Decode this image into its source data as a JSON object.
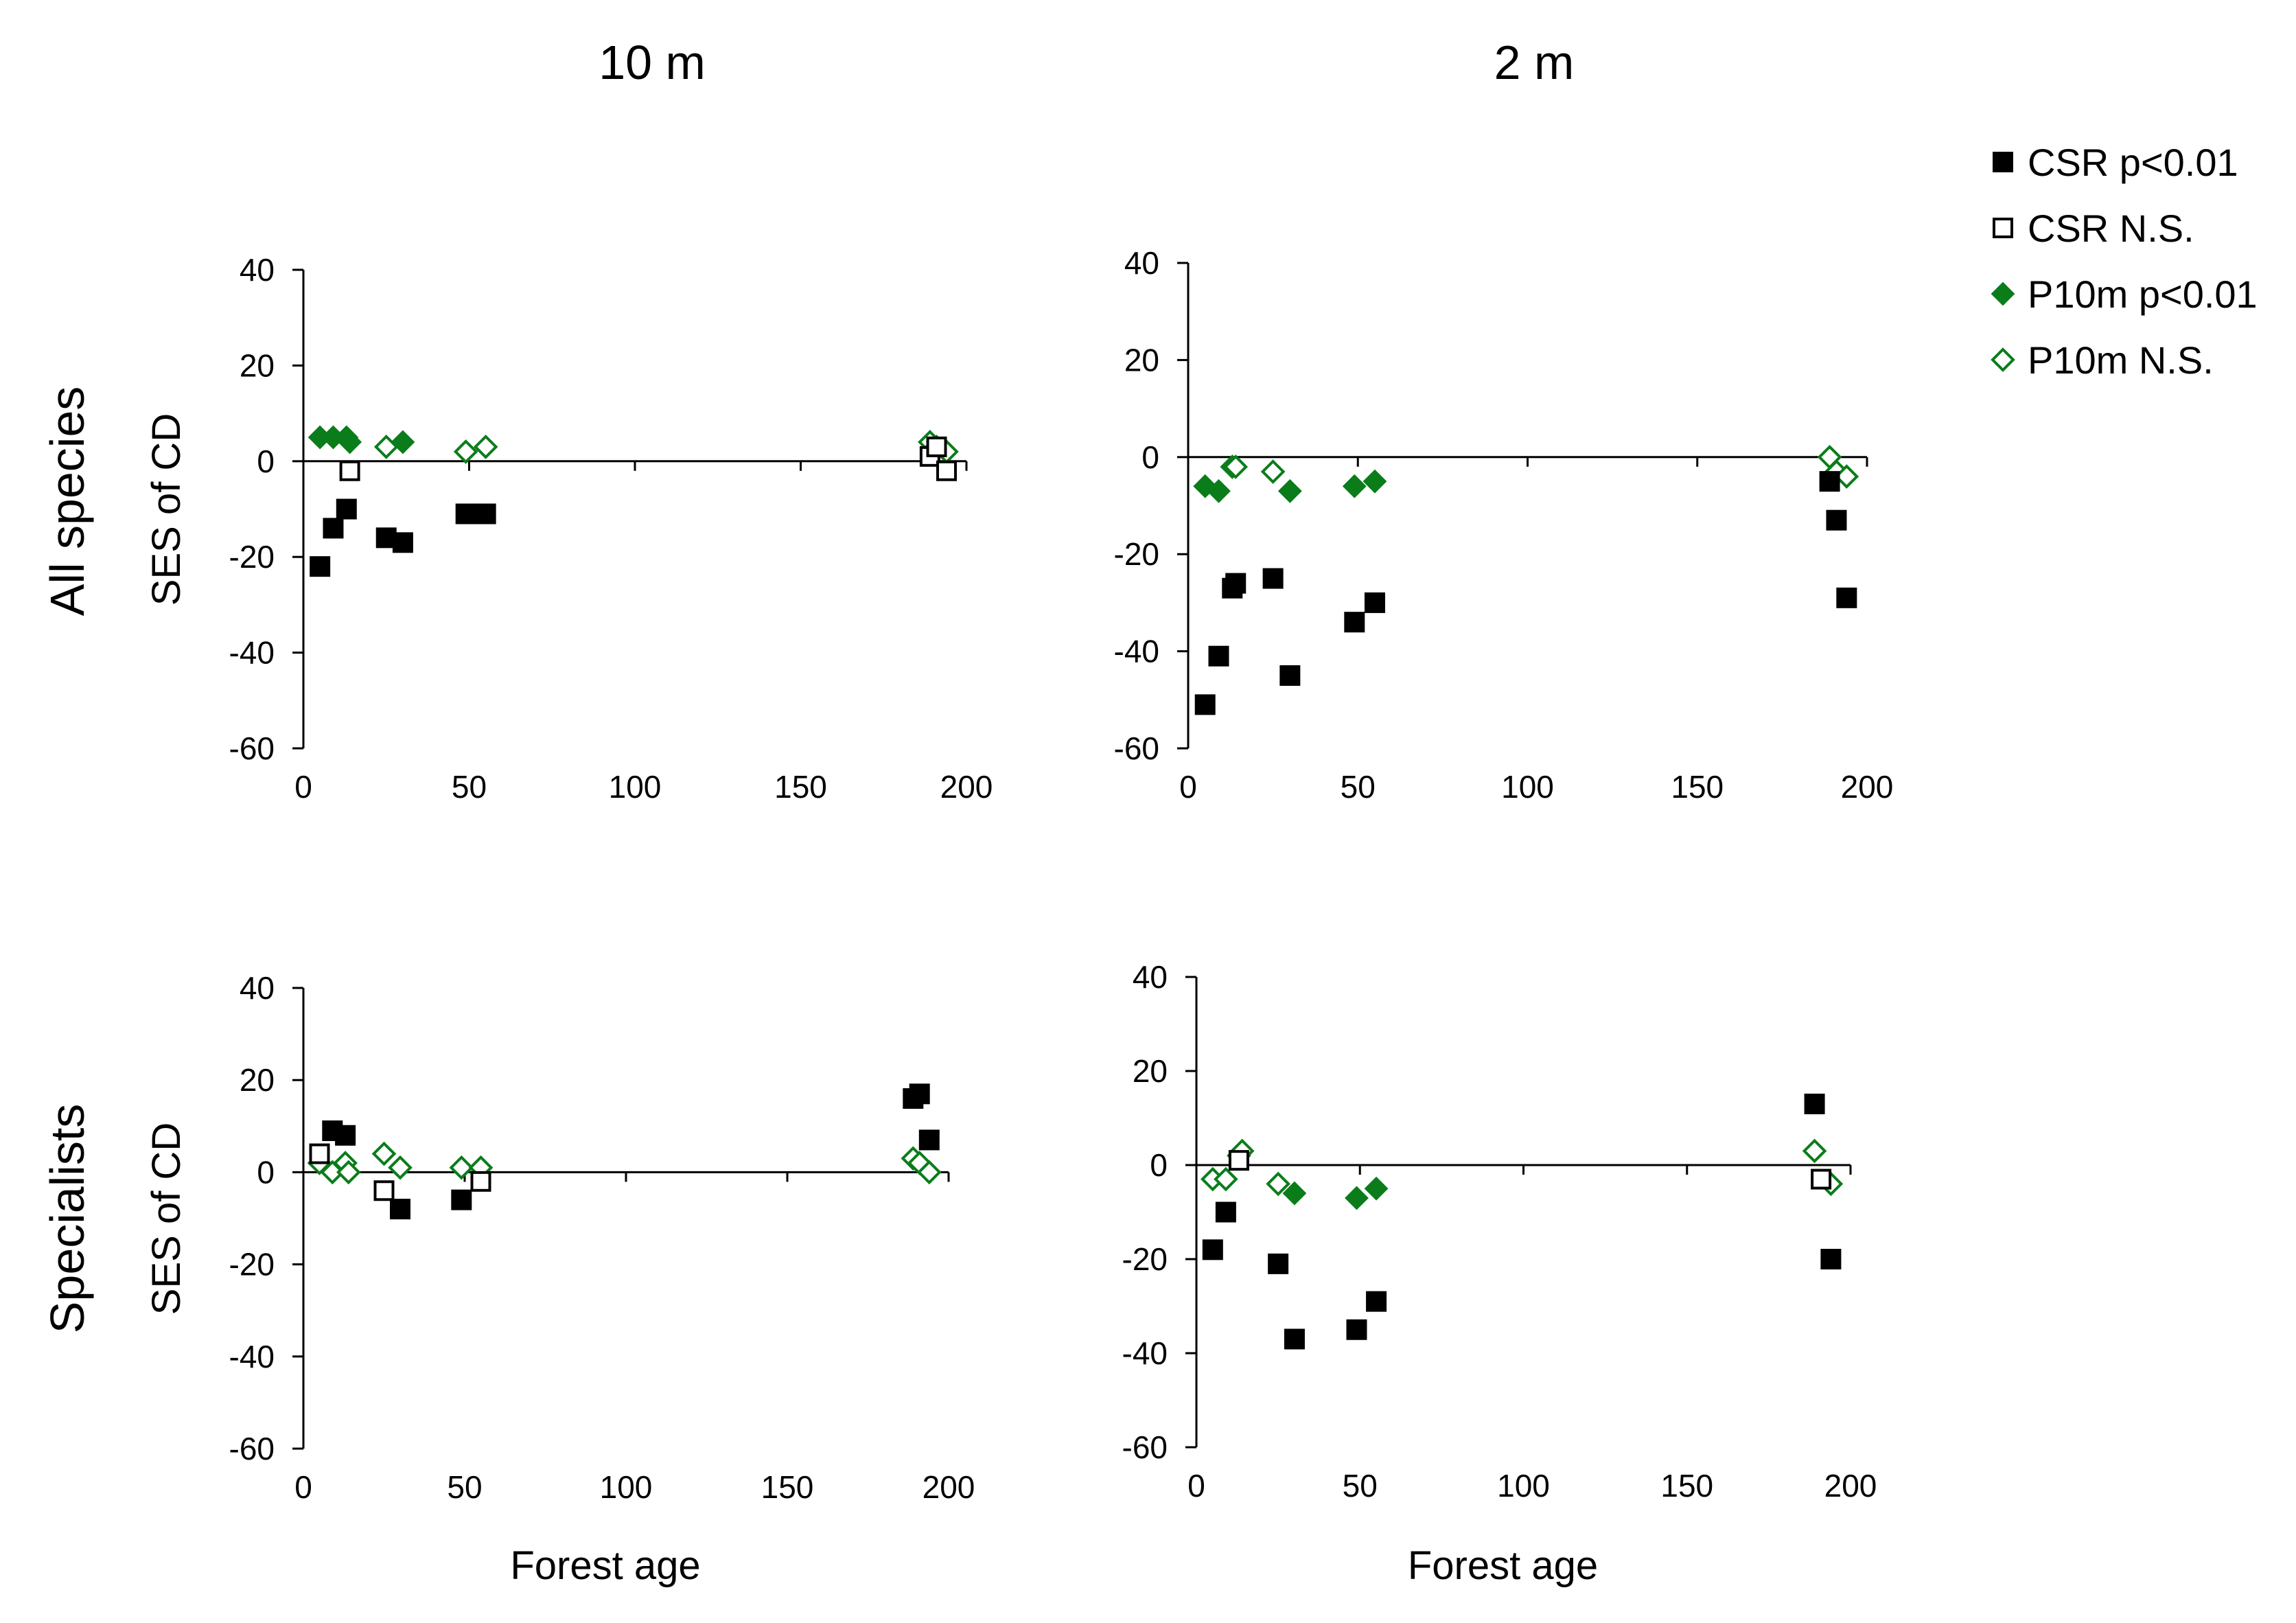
{
  "column_titles": [
    "10 m",
    "2 m"
  ],
  "row_titles": [
    "All species",
    "Specialists"
  ],
  "legend": [
    {
      "key": "csr_sig",
      "label": "CSR  p<0.01",
      "marker": "filled-square",
      "color": "#000000"
    },
    {
      "key": "csr_ns",
      "label": "CSR    N.S.",
      "marker": "open-square",
      "color": "#000000"
    },
    {
      "key": "p10_sig",
      "label": "P10m p<0.01",
      "marker": "filled-diamond",
      "color": "#0a7d1a"
    },
    {
      "key": "p10_ns",
      "label": "P10m   N.S.",
      "marker": "open-diamond",
      "color": "#0a7d1a"
    }
  ],
  "chart_data": [
    {
      "id": "all-10m",
      "type": "scatter",
      "row_title": "All species",
      "col_title": "10 m",
      "xlabel": "",
      "ylabel": "SES of CD",
      "xlim": [
        0,
        200
      ],
      "ylim": [
        -60,
        40
      ],
      "xticks": [
        0,
        50,
        100,
        150,
        200
      ],
      "yticks": [
        40,
        20,
        0,
        -20,
        -40,
        -60
      ],
      "series": [
        {
          "key": "csr_sig",
          "points": [
            [
              5,
              -22
            ],
            [
              9,
              -14
            ],
            [
              13,
              -10
            ],
            [
              25,
              -16
            ],
            [
              30,
              -17
            ],
            [
              49,
              -11
            ],
            [
              55,
              -11
            ]
          ]
        },
        {
          "key": "csr_ns",
          "points": [
            [
              14,
              -2
            ],
            [
              189,
              1
            ],
            [
              191,
              3
            ],
            [
              194,
              -2
            ]
          ]
        },
        {
          "key": "p10_sig",
          "points": [
            [
              5,
              5
            ],
            [
              9,
              5
            ],
            [
              13,
              5
            ],
            [
              14,
              4
            ],
            [
              30,
              4
            ]
          ]
        },
        {
          "key": "p10_ns",
          "points": [
            [
              25,
              3
            ],
            [
              49,
              2
            ],
            [
              55,
              3
            ],
            [
              189,
              4
            ],
            [
              191,
              3
            ],
            [
              194,
              2
            ]
          ]
        }
      ]
    },
    {
      "id": "all-2m",
      "type": "scatter",
      "row_title": "All species",
      "col_title": "2 m",
      "xlabel": "",
      "ylabel": "",
      "xlim": [
        0,
        200
      ],
      "ylim": [
        -60,
        40
      ],
      "xticks": [
        0,
        50,
        100,
        150,
        200
      ],
      "yticks": [
        40,
        20,
        0,
        -20,
        -40,
        -60
      ],
      "series": [
        {
          "key": "csr_sig",
          "points": [
            [
              5,
              -51
            ],
            [
              9,
              -41
            ],
            [
              13,
              -27
            ],
            [
              14,
              -26
            ],
            [
              25,
              -25
            ],
            [
              30,
              -45
            ],
            [
              49,
              -34
            ],
            [
              55,
              -30
            ],
            [
              189,
              -5
            ],
            [
              191,
              -13
            ],
            [
              194,
              -29
            ]
          ]
        },
        {
          "key": "csr_ns",
          "points": []
        },
        {
          "key": "p10_sig",
          "points": [
            [
              5,
              -6
            ],
            [
              9,
              -7
            ],
            [
              30,
              -7
            ],
            [
              49,
              -6
            ],
            [
              55,
              -5
            ]
          ]
        },
        {
          "key": "p10_ns",
          "points": [
            [
              13,
              -2
            ],
            [
              14,
              -2
            ],
            [
              25,
              -3
            ],
            [
              189,
              0
            ],
            [
              191,
              -3
            ],
            [
              194,
              -4
            ]
          ]
        }
      ]
    },
    {
      "id": "spec-10m",
      "type": "scatter",
      "row_title": "Specialists",
      "col_title": "10 m",
      "xlabel": "Forest age",
      "ylabel": "SES of CD",
      "xlim": [
        0,
        200
      ],
      "ylim": [
        -60,
        40
      ],
      "xticks": [
        0,
        50,
        100,
        150,
        200
      ],
      "yticks": [
        40,
        20,
        0,
        -20,
        -40,
        -60
      ],
      "series": [
        {
          "key": "csr_sig",
          "points": [
            [
              9,
              9
            ],
            [
              13,
              8
            ],
            [
              30,
              -8
            ],
            [
              49,
              -6
            ],
            [
              189,
              16
            ],
            [
              191,
              17
            ],
            [
              194,
              7
            ]
          ]
        },
        {
          "key": "csr_ns",
          "points": [
            [
              5,
              4
            ],
            [
              25,
              -4
            ],
            [
              55,
              -2
            ]
          ]
        },
        {
          "key": "p10_sig",
          "points": []
        },
        {
          "key": "p10_ns",
          "points": [
            [
              5,
              2
            ],
            [
              9,
              0
            ],
            [
              13,
              2
            ],
            [
              14,
              0
            ],
            [
              25,
              4
            ],
            [
              30,
              1
            ],
            [
              49,
              1
            ],
            [
              55,
              1
            ],
            [
              189,
              3
            ],
            [
              191,
              2
            ],
            [
              194,
              0
            ]
          ]
        }
      ]
    },
    {
      "id": "spec-2m",
      "type": "scatter",
      "row_title": "Specialists",
      "col_title": "2 m",
      "xlabel": "Forest age",
      "ylabel": "",
      "xlim": [
        0,
        200
      ],
      "ylim": [
        -60,
        40
      ],
      "xticks": [
        0,
        50,
        100,
        150,
        200
      ],
      "yticks": [
        40,
        20,
        0,
        -20,
        -40,
        -60
      ],
      "series": [
        {
          "key": "csr_sig",
          "points": [
            [
              5,
              -18
            ],
            [
              9,
              -10
            ],
            [
              25,
              -21
            ],
            [
              30,
              -37
            ],
            [
              49,
              -35
            ],
            [
              55,
              -29
            ],
            [
              189,
              13
            ],
            [
              194,
              -20
            ]
          ]
        },
        {
          "key": "csr_ns",
          "points": [
            [
              13,
              1
            ],
            [
              191,
              -3
            ]
          ]
        },
        {
          "key": "p10_sig",
          "points": [
            [
              30,
              -6
            ],
            [
              49,
              -7
            ],
            [
              55,
              -5
            ]
          ]
        },
        {
          "key": "p10_ns",
          "points": [
            [
              5,
              -3
            ],
            [
              9,
              -3
            ],
            [
              13,
              2
            ],
            [
              14,
              3
            ],
            [
              25,
              -4
            ],
            [
              189,
              3
            ],
            [
              194,
              -4
            ]
          ]
        }
      ]
    }
  ]
}
